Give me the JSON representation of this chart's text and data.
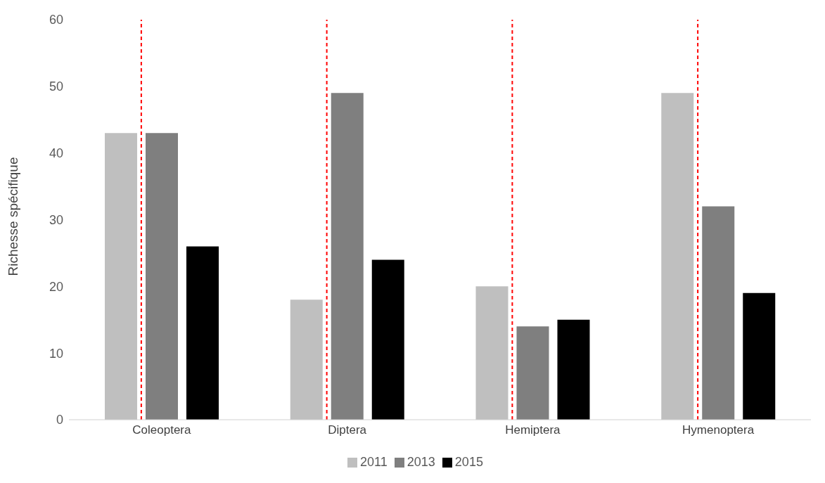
{
  "chart_data": {
    "type": "bar",
    "ylabel": "Richesse spécifique",
    "categories": [
      "Coleoptera",
      "Diptera",
      "Hemiptera",
      "Hymenoptera"
    ],
    "series": [
      {
        "name": "2011",
        "color": "#bfbfbf",
        "values": [
          43,
          18,
          20,
          49
        ]
      },
      {
        "name": "2013",
        "color": "#7f7f7f",
        "values": [
          43,
          49,
          14,
          32
        ]
      },
      {
        "name": "2015",
        "color": "#000000",
        "values": [
          26,
          24,
          15,
          19
        ]
      }
    ],
    "ylim": [
      0,
      60
    ],
    "yticks": [
      0,
      10,
      20,
      30,
      40,
      50,
      60
    ],
    "grid": false,
    "legend": "bottom",
    "ref_lines": [
      {
        "axis": "x",
        "value": "Coleoptera",
        "color": "#ff0000",
        "line_style": "dashed"
      },
      {
        "axis": "x",
        "value": "Diptera",
        "color": "#ff0000",
        "line_style": "dashed"
      },
      {
        "axis": "x",
        "value": "Hemiptera",
        "color": "#ff0000",
        "line_style": "dashed"
      },
      {
        "axis": "x",
        "value": "Hymenoptera",
        "color": "#ff0000",
        "line_style": "dashed"
      }
    ]
  }
}
